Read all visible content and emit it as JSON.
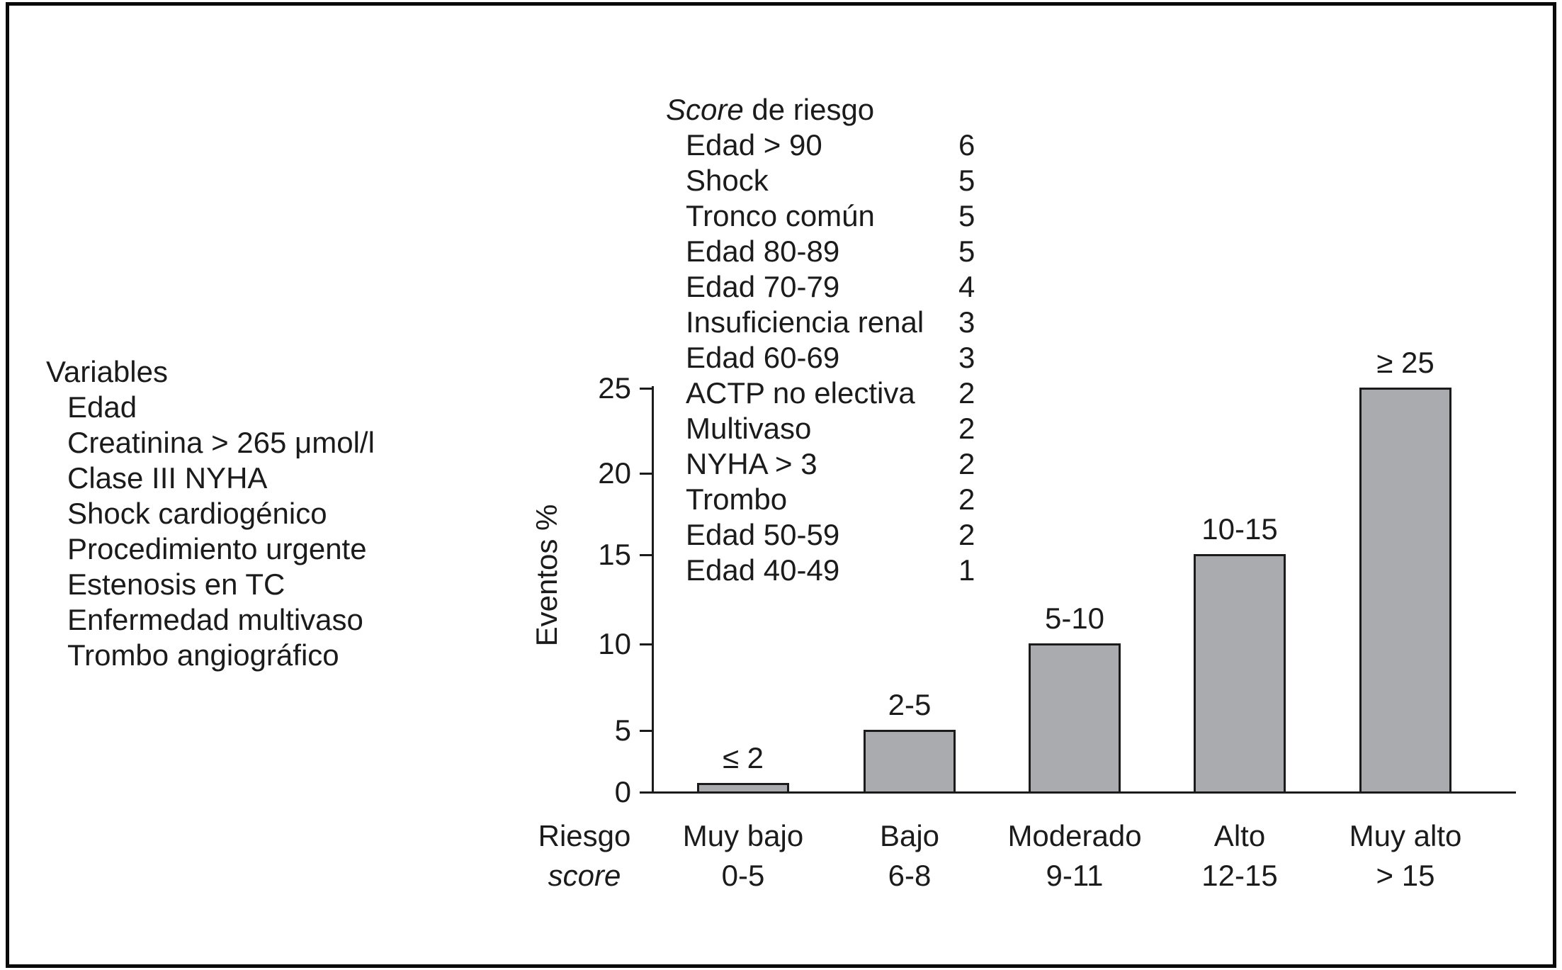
{
  "figure": {
    "background": "#ffffff",
    "border_color": "#0a0a0a",
    "text_color": "#1b1b1b"
  },
  "variables_panel": {
    "title": "Variables",
    "items": [
      "Edad",
      "Creatinina > 265 μmol/l",
      "Clase III NYHA",
      "Shock cardiogénico",
      "Procedimiento urgente",
      "Estenosis en TC",
      "Enfermedad multivaso",
      "Trombo angiográfico"
    ]
  },
  "score_panel": {
    "title_italic": "Score",
    "title_rest": " de riesgo",
    "items": [
      {
        "label": "Edad > 90",
        "points": "6"
      },
      {
        "label": "Shock",
        "points": "5"
      },
      {
        "label": "Tronco común",
        "points": "5"
      },
      {
        "label": "Edad 80-89",
        "points": "5"
      },
      {
        "label": "Edad 70-79",
        "points": "4"
      },
      {
        "label": "Insuficiencia renal",
        "points": "3"
      },
      {
        "label": "Edad 60-69",
        "points": "3"
      },
      {
        "label": "ACTP no electiva",
        "points": "2"
      },
      {
        "label": "Multivaso",
        "points": "2"
      },
      {
        "label": "NYHA > 3",
        "points": "2"
      },
      {
        "label": "Trombo",
        "points": "2"
      },
      {
        "label": "Edad 50-59",
        "points": "2"
      },
      {
        "label": "Edad 40-49",
        "points": "1"
      }
    ]
  },
  "chart_data": {
    "type": "bar",
    "title": "",
    "ylabel": "Eventos %",
    "xlabel_line1": "Riesgo",
    "xlabel_line2": "score",
    "ylim": [
      0,
      25
    ],
    "yticks": [
      0,
      5,
      10,
      15,
      20,
      25
    ],
    "grid": false,
    "legend": false,
    "bar_color": "#a9abae",
    "bar_border_color": "#1b1b1b",
    "categories": [
      "Muy bajo",
      "Bajo",
      "Moderado",
      "Alto",
      "Muy alto"
    ],
    "category_score_ranges": [
      "0-5",
      "6-8",
      "9-11",
      "12-15",
      "> 15"
    ],
    "values": [
      0.7,
      5,
      10,
      15,
      25
    ],
    "bar_labels": [
      "≤ 2",
      "2-5",
      "5-10",
      "10-15",
      "≥ 25"
    ]
  }
}
